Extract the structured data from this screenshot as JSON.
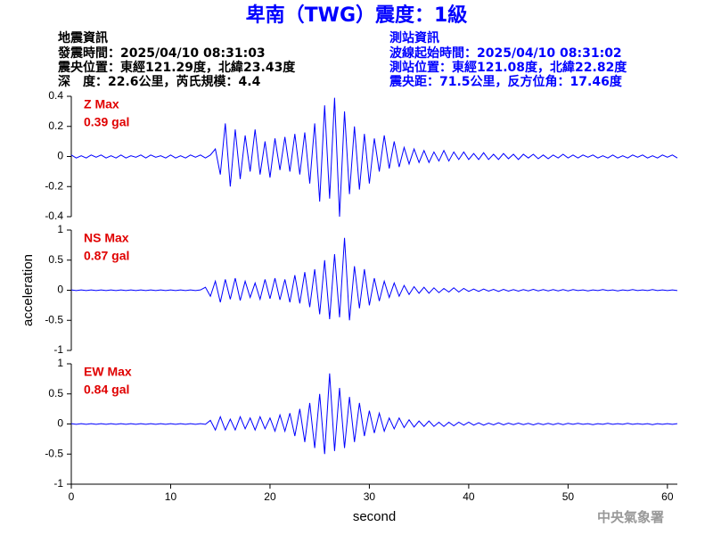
{
  "header": {
    "title": "卑南（TWG）震度：1級",
    "left": [
      "地震資訊",
      "發震時間：2025/04/10 08:31:03",
      "震央位置：東經121.29度，北緯23.43度",
      "深　度：22.6公里，芮氏規模：4.4"
    ],
    "right": [
      "測站資訊",
      "波線起始時間：2025/04/10 08:31:02",
      "測站位置：東經121.08度，北緯22.82度",
      "震央距：71.5公里，反方位角：17.46度"
    ],
    "watermark": "中央氣象署"
  },
  "chart_data": [
    {
      "type": "line",
      "color": "#0000ff",
      "annotations": [
        "Z Max",
        "0.39 gal"
      ],
      "xlim": [
        0,
        61
      ],
      "ylim": [
        -0.4,
        0.4
      ],
      "yticks": [
        -0.4,
        -0.2,
        0,
        0.2,
        0.4
      ],
      "x": [
        0,
        0.5,
        1,
        1.5,
        2,
        2.5,
        3,
        3.5,
        4,
        4.5,
        5,
        5.5,
        6,
        6.5,
        7,
        7.5,
        8,
        8.5,
        9,
        9.5,
        10,
        10.5,
        11,
        11.5,
        12,
        12.5,
        13,
        13.5,
        14,
        14.5,
        15,
        15.5,
        16,
        16.5,
        17,
        17.5,
        18,
        18.5,
        19,
        19.5,
        20,
        20.5,
        21,
        21.5,
        22,
        22.5,
        23,
        23.5,
        24,
        24.5,
        25,
        25.5,
        26,
        26.5,
        27,
        27.5,
        28,
        28.5,
        29,
        29.5,
        30,
        30.5,
        31,
        31.5,
        32,
        32.5,
        33,
        33.5,
        34,
        34.5,
        35,
        35.5,
        36,
        36.5,
        37,
        37.5,
        38,
        38.5,
        39,
        39.5,
        40,
        40.5,
        41,
        41.5,
        42,
        42.5,
        43,
        43.5,
        44,
        44.5,
        45,
        45.5,
        46,
        46.5,
        47,
        47.5,
        48,
        48.5,
        49,
        49.5,
        50,
        50.5,
        51,
        51.5,
        52,
        52.5,
        53,
        53.5,
        54,
        54.5,
        55,
        55.5,
        56,
        56.5,
        57,
        57.5,
        58,
        58.5,
        59,
        59.5,
        60,
        60.5,
        61
      ],
      "values": [
        0.01,
        -0.01,
        0.005,
        -0.01,
        0.01,
        -0.005,
        0.01,
        -0.01,
        0.005,
        -0.01,
        0.01,
        -0.01,
        0.005,
        -0.005,
        0.01,
        -0.01,
        0.01,
        -0.005,
        0.005,
        -0.01,
        0.01,
        -0.01,
        0.005,
        -0.01,
        0.01,
        -0.005,
        0.01,
        -0.01,
        0.01,
        0.05,
        -0.12,
        0.22,
        -0.2,
        0.18,
        -0.15,
        0.14,
        -0.1,
        0.18,
        -0.12,
        0.1,
        -0.14,
        0.12,
        -0.09,
        0.13,
        -0.1,
        0.15,
        -0.12,
        0.16,
        -0.18,
        0.22,
        -0.3,
        0.34,
        -0.28,
        0.39,
        -0.4,
        0.3,
        -0.25,
        0.2,
        -0.22,
        0.15,
        -0.18,
        0.12,
        -0.1,
        0.14,
        -0.08,
        0.1,
        -0.07,
        0.06,
        -0.05,
        0.05,
        -0.04,
        0.04,
        -0.04,
        0.03,
        -0.03,
        0.04,
        -0.03,
        0.03,
        -0.02,
        0.03,
        -0.02,
        0.02,
        -0.02,
        0.025,
        -0.02,
        0.015,
        -0.02,
        0.02,
        -0.015,
        0.015,
        -0.02,
        0.015,
        -0.01,
        0.015,
        -0.015,
        0.01,
        -0.015,
        0.01,
        -0.01,
        0.015,
        -0.01,
        0.01,
        -0.01,
        0.01,
        -0.005,
        0.01,
        -0.01,
        0.005,
        -0.01,
        0.01,
        -0.01,
        0.005,
        -0.01,
        0.01,
        -0.005,
        0.01,
        -0.01,
        0.005,
        -0.01,
        0.01,
        -0.005,
        0.01,
        -0.01
      ]
    },
    {
      "type": "line",
      "color": "#0000ff",
      "annotations": [
        "NS Max",
        "0.87 gal"
      ],
      "ylabel": "acceleration",
      "xlim": [
        0,
        61
      ],
      "ylim": [
        -1,
        1
      ],
      "yticks": [
        -1,
        -0.5,
        0,
        0.5,
        1
      ],
      "x": [
        0,
        0.5,
        1,
        1.5,
        2,
        2.5,
        3,
        3.5,
        4,
        4.5,
        5,
        5.5,
        6,
        6.5,
        7,
        7.5,
        8,
        8.5,
        9,
        9.5,
        10,
        10.5,
        11,
        11.5,
        12,
        12.5,
        13,
        13.5,
        14,
        14.5,
        15,
        15.5,
        16,
        16.5,
        17,
        17.5,
        18,
        18.5,
        19,
        19.5,
        20,
        20.5,
        21,
        21.5,
        22,
        22.5,
        23,
        23.5,
        24,
        24.5,
        25,
        25.5,
        26,
        26.5,
        27,
        27.5,
        28,
        28.5,
        29,
        29.5,
        30,
        30.5,
        31,
        31.5,
        32,
        32.5,
        33,
        33.5,
        34,
        34.5,
        35,
        35.5,
        36,
        36.5,
        37,
        37.5,
        38,
        38.5,
        39,
        39.5,
        40,
        40.5,
        41,
        41.5,
        42,
        42.5,
        43,
        43.5,
        44,
        44.5,
        45,
        45.5,
        46,
        46.5,
        47,
        47.5,
        48,
        48.5,
        49,
        49.5,
        50,
        50.5,
        51,
        51.5,
        52,
        52.5,
        53,
        53.5,
        54,
        54.5,
        55,
        55.5,
        56,
        56.5,
        57,
        57.5,
        58,
        58.5,
        59,
        59.5,
        60,
        60.5,
        61
      ],
      "values": [
        0.005,
        -0.005,
        0.005,
        -0.005,
        0.005,
        -0.005,
        0.005,
        -0.005,
        0.005,
        -0.005,
        0.005,
        -0.005,
        0.005,
        -0.005,
        0.005,
        -0.005,
        0.005,
        -0.005,
        0.005,
        -0.005,
        0.005,
        -0.005,
        0.005,
        -0.005,
        0.005,
        -0.005,
        0.005,
        0.05,
        -0.1,
        0.15,
        -0.2,
        0.18,
        -0.15,
        0.2,
        -0.17,
        0.15,
        -0.12,
        0.12,
        -0.15,
        0.18,
        -0.14,
        0.2,
        -0.16,
        0.18,
        -0.2,
        0.25,
        -0.22,
        0.3,
        -0.28,
        0.35,
        -0.4,
        0.5,
        -0.48,
        0.6,
        -0.45,
        0.87,
        -0.5,
        0.4,
        -0.3,
        0.35,
        -0.25,
        0.2,
        -0.18,
        0.15,
        -0.12,
        0.12,
        -0.1,
        0.08,
        -0.07,
        0.06,
        -0.05,
        0.05,
        -0.05,
        0.04,
        -0.04,
        0.03,
        -0.03,
        0.04,
        -0.03,
        0.03,
        -0.02,
        0.02,
        -0.02,
        0.02,
        -0.015,
        0.015,
        -0.02,
        0.015,
        -0.015,
        0.01,
        -0.015,
        0.01,
        -0.01,
        0.015,
        -0.01,
        0.01,
        -0.01,
        0.01,
        -0.01,
        0.01,
        -0.01,
        0.01,
        -0.005,
        0.005,
        -0.01,
        0.005,
        -0.005,
        0.01,
        -0.005,
        0.005,
        -0.01,
        0.005,
        -0.005,
        0.01,
        -0.005,
        0.005,
        -0.005,
        0.01,
        -0.005,
        0.005,
        -0.005,
        0.005,
        -0.005
      ]
    },
    {
      "type": "line",
      "color": "#0000ff",
      "annotations": [
        "EW Max",
        "0.84 gal"
      ],
      "xlabel": "second",
      "xlim": [
        0,
        61
      ],
      "xticks": [
        0,
        10,
        20,
        30,
        40,
        50,
        60
      ],
      "ylim": [
        -1,
        1
      ],
      "yticks": [
        -1,
        -0.5,
        0,
        0.5,
        1
      ],
      "x": [
        0,
        0.5,
        1,
        1.5,
        2,
        2.5,
        3,
        3.5,
        4,
        4.5,
        5,
        5.5,
        6,
        6.5,
        7,
        7.5,
        8,
        8.5,
        9,
        9.5,
        10,
        10.5,
        11,
        11.5,
        12,
        12.5,
        13,
        13.5,
        14,
        14.5,
        15,
        15.5,
        16,
        16.5,
        17,
        17.5,
        18,
        18.5,
        19,
        19.5,
        20,
        20.5,
        21,
        21.5,
        22,
        22.5,
        23,
        23.5,
        24,
        24.5,
        25,
        25.5,
        26,
        26.5,
        27,
        27.5,
        28,
        28.5,
        29,
        29.5,
        30,
        30.5,
        31,
        31.5,
        32,
        32.5,
        33,
        33.5,
        34,
        34.5,
        35,
        35.5,
        36,
        36.5,
        37,
        37.5,
        38,
        38.5,
        39,
        39.5,
        40,
        40.5,
        41,
        41.5,
        42,
        42.5,
        43,
        43.5,
        44,
        44.5,
        45,
        45.5,
        46,
        46.5,
        47,
        47.5,
        48,
        48.5,
        49,
        49.5,
        50,
        50.5,
        51,
        51.5,
        52,
        52.5,
        53,
        53.5,
        54,
        54.5,
        55,
        55.5,
        56,
        56.5,
        57,
        57.5,
        58,
        58.5,
        59,
        59.5,
        60,
        60.5,
        61
      ],
      "values": [
        0.005,
        -0.005,
        0.005,
        -0.005,
        0.005,
        -0.005,
        0.005,
        -0.005,
        0.005,
        -0.005,
        0.005,
        -0.005,
        0.005,
        -0.005,
        0.005,
        -0.005,
        0.005,
        -0.005,
        0.005,
        -0.005,
        0.005,
        -0.005,
        0.005,
        -0.005,
        0.005,
        -0.005,
        0.005,
        -0.005,
        0.06,
        -0.1,
        0.12,
        -0.1,
        0.08,
        -0.1,
        0.12,
        -0.08,
        0.1,
        -0.1,
        0.12,
        -0.08,
        0.1,
        -0.12,
        0.15,
        -0.12,
        0.18,
        -0.2,
        0.25,
        -0.3,
        0.35,
        -0.4,
        0.5,
        -0.5,
        0.84,
        -0.45,
        0.6,
        -0.4,
        0.45,
        -0.3,
        0.35,
        -0.2,
        0.22,
        -0.15,
        0.18,
        -0.12,
        0.1,
        -0.08,
        0.1,
        -0.06,
        0.07,
        -0.05,
        0.05,
        -0.04,
        0.05,
        -0.04,
        0.03,
        -0.04,
        0.03,
        -0.03,
        0.03,
        -0.02,
        0.03,
        -0.02,
        0.02,
        -0.02,
        0.015,
        -0.015,
        0.02,
        -0.015,
        0.015,
        -0.01,
        0.015,
        -0.01,
        0.01,
        -0.015,
        0.01,
        -0.01,
        0.01,
        -0.01,
        0.01,
        -0.01,
        0.01,
        -0.005,
        0.01,
        -0.005,
        0.005,
        -0.01,
        0.005,
        -0.005,
        0.01,
        -0.005,
        0.005,
        -0.005,
        0.01,
        -0.005,
        0.005,
        -0.005,
        0.005,
        -0.01,
        0.005,
        -0.005,
        0.005,
        -0.005,
        0.005
      ]
    }
  ]
}
